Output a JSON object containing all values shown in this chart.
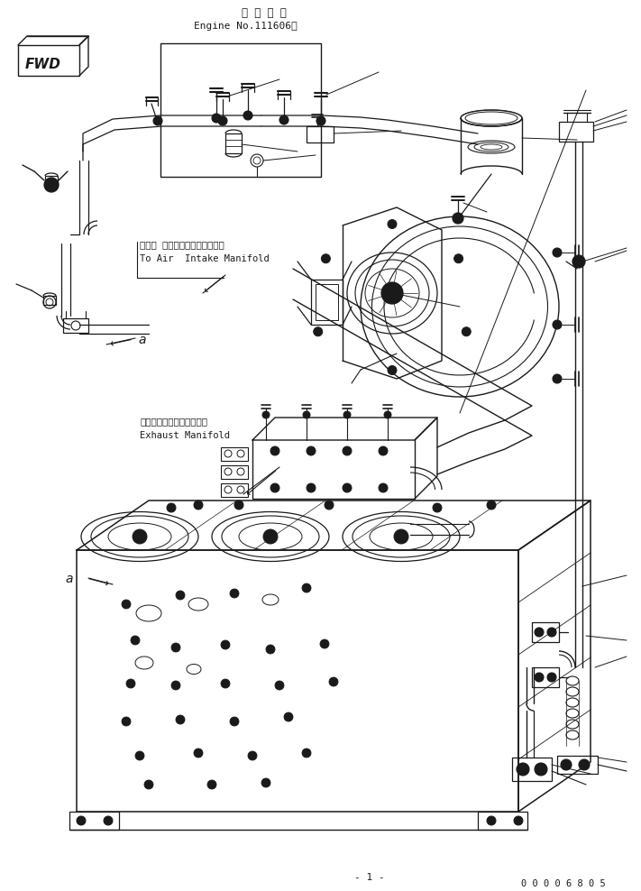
{
  "bg_color": "#ffffff",
  "line_color": "#1a1a1a",
  "fig_width": 7.11,
  "fig_height": 9.88,
  "dpi": 100,
  "title_jp": "適 用 号 機",
  "title_en": "Engine No.111606～",
  "label_air_jp": "エアー インテークマニホールヘ",
  "label_air_en": "To Air  Intake Manifold",
  "label_exhaust_jp": "エキゾーストマニホールド",
  "label_exhaust_en": "Exhaust Manifold",
  "label_a1": "a",
  "label_a2": "a",
  "part_number": "0 0 0 0 6 8 0 5",
  "page_num": "- 1 -"
}
